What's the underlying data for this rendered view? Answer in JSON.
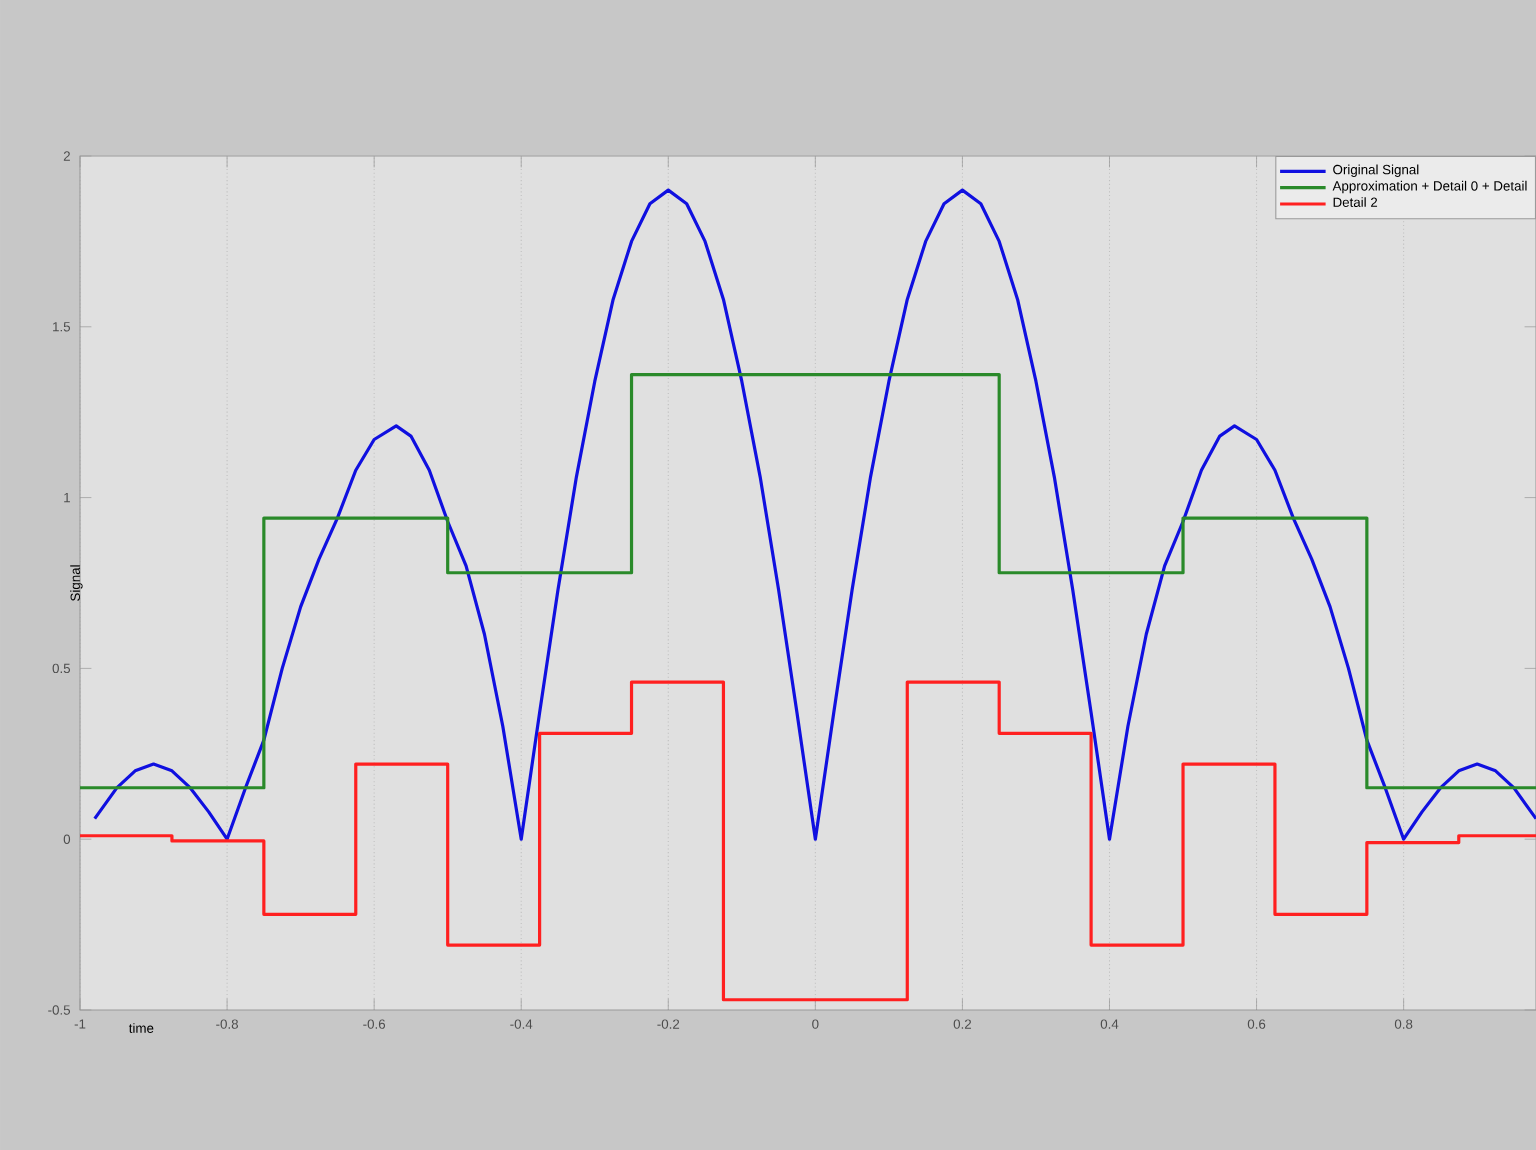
{
  "chart_data": {
    "type": "line",
    "xlabel": "time",
    "ylabel": "Signal",
    "xlim": [
      -1,
      0.98
    ],
    "ylim": [
      -0.5,
      2
    ],
    "xticks": [
      -1,
      -0.8,
      -0.6,
      -0.4,
      -0.2,
      0,
      0.2,
      0.4,
      0.6,
      0.8
    ],
    "yticks": [
      -0.5,
      0,
      0.5,
      1,
      1.5,
      2
    ],
    "grid": "x",
    "legend": "top right",
    "series": [
      {
        "name": "Original Signal",
        "color": "#1010e0",
        "x": [
          -0.98,
          -0.95,
          -0.925,
          -0.9,
          -0.875,
          -0.85,
          -0.825,
          -0.8,
          -0.775,
          -0.75,
          -0.725,
          -0.7,
          -0.675,
          -0.65,
          -0.625,
          -0.6,
          -0.57,
          -0.55,
          -0.525,
          -0.5,
          -0.475,
          -0.45,
          -0.425,
          -0.4,
          -0.375,
          -0.35,
          -0.325,
          -0.3,
          -0.275,
          -0.25,
          -0.225,
          -0.2,
          -0.175,
          -0.15,
          -0.125,
          -0.1,
          -0.075,
          -0.05,
          -0.025,
          0,
          0.025,
          0.05,
          0.075,
          0.1,
          0.125,
          0.15,
          0.175,
          0.2,
          0.225,
          0.25,
          0.275,
          0.3,
          0.325,
          0.35,
          0.375,
          0.4,
          0.425,
          0.45,
          0.475,
          0.5,
          0.525,
          0.55,
          0.57,
          0.6,
          0.625,
          0.65,
          0.675,
          0.7,
          0.725,
          0.75,
          0.775,
          0.8,
          0.825,
          0.85,
          0.875,
          0.9,
          0.925,
          0.95,
          0.98
        ],
        "values": [
          0.06,
          0.15,
          0.2,
          0.22,
          0.2,
          0.15,
          0.08,
          0,
          0.15,
          0.29,
          0.5,
          0.68,
          0.82,
          0.94,
          1.08,
          1.17,
          1.21,
          1.18,
          1.08,
          0.93,
          0.8,
          0.6,
          0.33,
          0,
          0.37,
          0.73,
          1.06,
          1.34,
          1.58,
          1.75,
          1.86,
          1.9,
          1.86,
          1.75,
          1.58,
          1.34,
          1.06,
          0.73,
          0.37,
          0,
          0.37,
          0.73,
          1.06,
          1.34,
          1.58,
          1.75,
          1.86,
          1.9,
          1.86,
          1.75,
          1.58,
          1.34,
          1.06,
          0.73,
          0.37,
          0,
          0.33,
          0.6,
          0.8,
          0.93,
          1.08,
          1.18,
          1.21,
          1.17,
          1.08,
          0.94,
          0.82,
          0.68,
          0.5,
          0.29,
          0.15,
          0,
          0.08,
          0.15,
          0.2,
          0.22,
          0.2,
          0.15,
          0.06
        ]
      },
      {
        "name": "Approximation + Detail 0 + Detail",
        "type": "step",
        "color": "#2a8a2a",
        "x": [
          -1,
          -0.75,
          -0.5,
          -0.25,
          0.25,
          0.5,
          0.75,
          0.98
        ],
        "values": [
          0.15,
          0.94,
          0.78,
          1.36,
          0.78,
          0.94,
          0.15,
          0.15
        ]
      },
      {
        "name": "Detail 2",
        "type": "step",
        "color": "#ff2020",
        "x": [
          -1,
          -0.875,
          -0.75,
          -0.625,
          -0.5,
          -0.375,
          -0.25,
          -0.125,
          0.125,
          0.25,
          0.375,
          0.5,
          0.625,
          0.75,
          0.875,
          0.98
        ],
        "values": [
          0.01,
          -0.005,
          -0.22,
          0.22,
          -0.31,
          0.31,
          0.46,
          -0.47,
          0.46,
          0.31,
          -0.31,
          0.22,
          -0.22,
          -0.01,
          0.01,
          0.01
        ]
      }
    ]
  }
}
